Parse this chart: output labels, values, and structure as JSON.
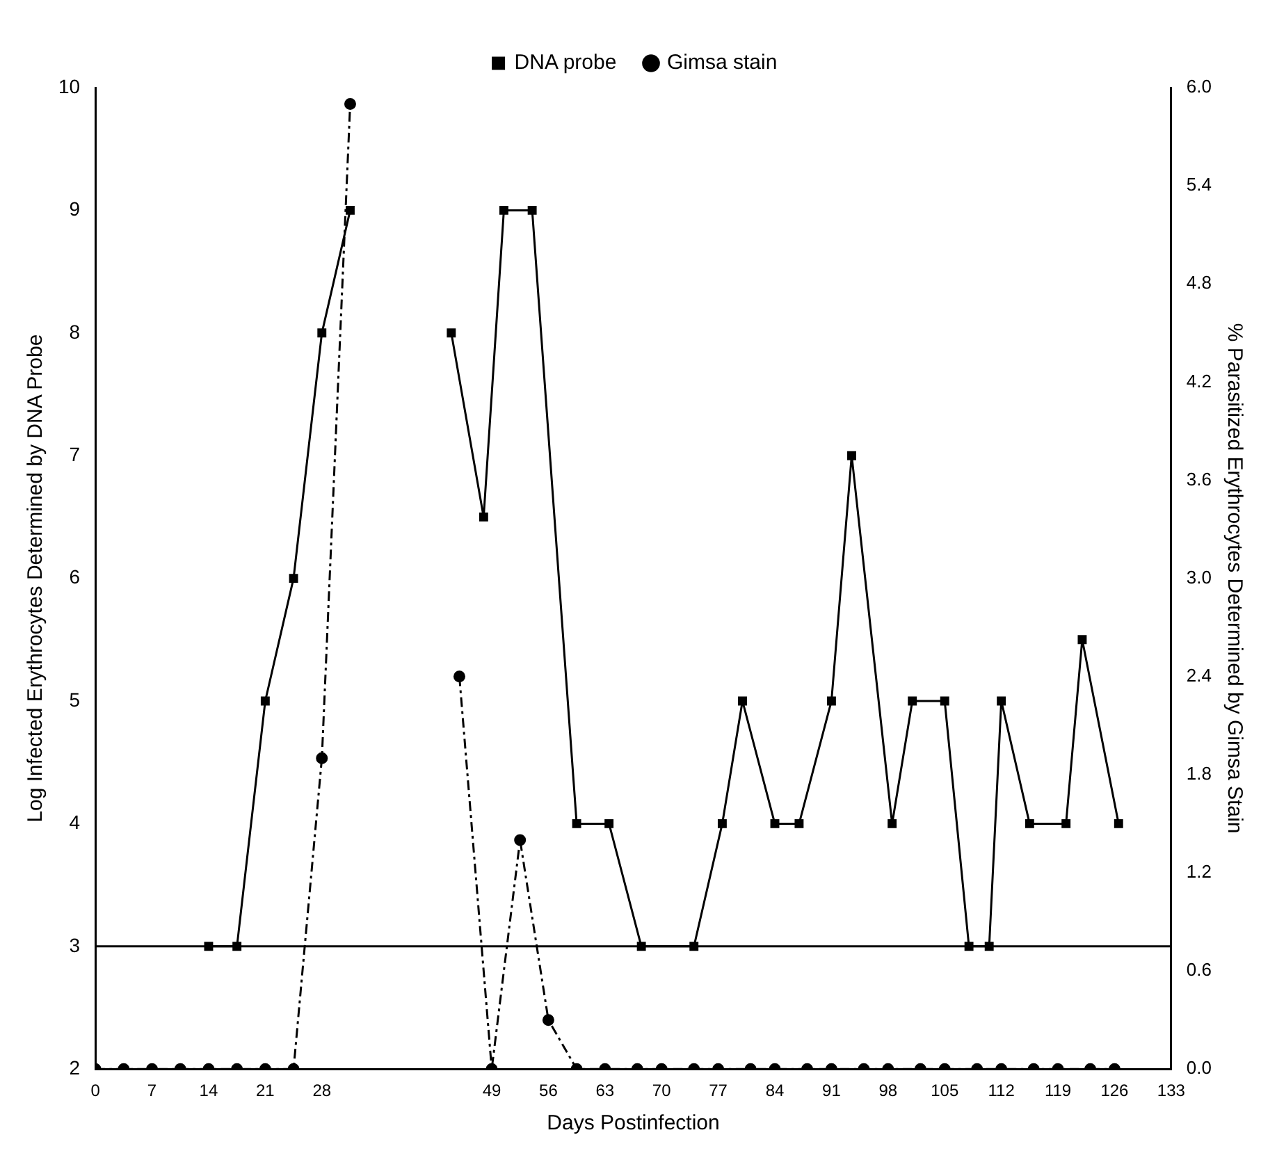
{
  "chart_data": {
    "type": "line",
    "xlabel": "Days Postinfection",
    "ylabel": "Log Infected Erythrocytes Determined by DNA Probe",
    "y2label": "% Parasitized Erythrocytes Determined by Gimsa Stain",
    "xlim": [
      0,
      133
    ],
    "xticks": [
      0,
      7,
      14,
      21,
      28,
      49,
      56,
      63,
      70,
      77,
      84,
      91,
      98,
      105,
      112,
      119,
      126,
      133
    ],
    "ylim": [
      2,
      10
    ],
    "yticks": [
      2,
      3,
      4,
      5,
      6,
      7,
      8,
      9,
      10
    ],
    "y2lim": [
      0,
      6
    ],
    "y2ticks": [
      {
        "value": 0,
        "label": "0.0"
      },
      0.6,
      1.2,
      1.8,
      2.4,
      {
        "value": 3,
        "label": "3.0"
      },
      3.6,
      4.2,
      4.8,
      5.4,
      {
        "value": 6,
        "label": "6.0"
      }
    ],
    "legend": "top",
    "grid": false,
    "ref_lines": [
      {
        "axis": "y",
        "value": 3,
        "color": "#000000",
        "line_style": "solid"
      }
    ],
    "series": [
      {
        "name": "DNA probe",
        "color": "#000000",
        "marker": "square",
        "line_style": "solid",
        "x": [
          14,
          17.5,
          21,
          24.5,
          28,
          31.5,
          38,
          44,
          48,
          50.5,
          54,
          59.5,
          63.5,
          67.5,
          74,
          77.5,
          80,
          84,
          87,
          91,
          93.5,
          98.5,
          101,
          105,
          108,
          110.5,
          112,
          115.5,
          120,
          122,
          126.5
        ],
        "values": [
          3,
          3,
          5,
          6,
          8,
          9,
          null,
          8,
          6.5,
          9,
          9,
          4,
          4,
          3,
          3,
          4,
          5,
          4,
          4,
          5,
          7,
          4,
          5,
          5,
          3,
          3,
          5,
          4,
          4,
          5.5,
          4
        ]
      },
      {
        "name": "Gimsa stain",
        "color": "#000000",
        "marker": "circle",
        "line_style": "dashed",
        "axis": "y2",
        "x": [
          0,
          3.5,
          7,
          10.5,
          14,
          17.5,
          21,
          24.5,
          28,
          31.5,
          38,
          45,
          49,
          52.5,
          56,
          59.5,
          63,
          67,
          70,
          74,
          77,
          81,
          84,
          88,
          91,
          95,
          98,
          102,
          105,
          109,
          112,
          116,
          119,
          123,
          126
        ],
        "values": [
          0,
          0,
          0,
          0,
          0,
          0,
          0,
          0,
          1.9,
          5.9,
          null,
          2.4,
          0,
          1.4,
          0.3,
          0,
          0,
          0,
          0,
          0,
          0,
          0,
          0,
          0,
          0,
          0,
          0,
          0,
          0,
          0,
          0,
          0,
          0,
          0,
          0
        ]
      }
    ]
  }
}
